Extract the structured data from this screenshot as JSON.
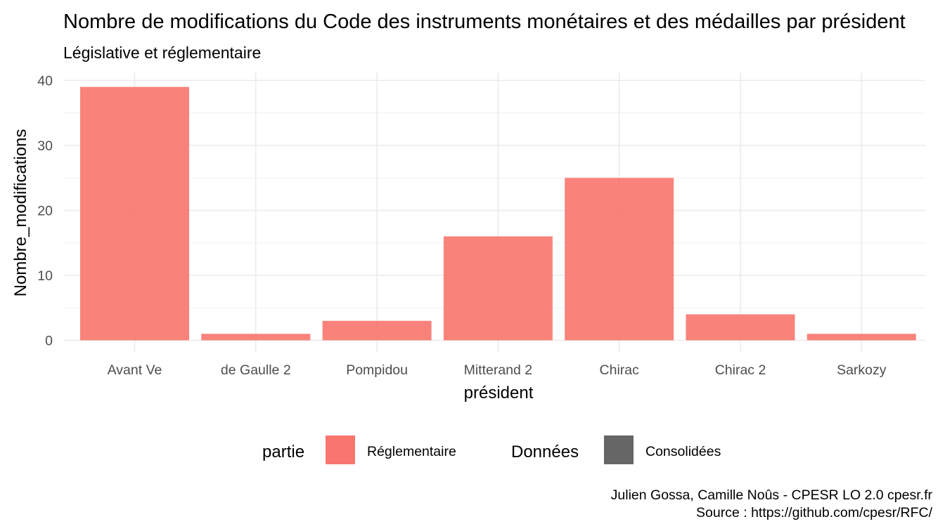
{
  "chart_data": {
    "type": "bar",
    "title": "Nombre de modifications du Code des instruments monétaires et des médailles par président",
    "subtitle": "Législative et réglementaire",
    "xlabel": "président",
    "ylabel": "Nombre_modifications",
    "categories": [
      "Avant Ve",
      "de Gaulle 2",
      "Pompidou",
      "Mitterand 2",
      "Chirac",
      "Chirac 2",
      "Sarkozy"
    ],
    "series": [
      {
        "name": "Réglementaire",
        "color": "#F8766D",
        "values": [
          39,
          1,
          3,
          16,
          25,
          4,
          1
        ]
      }
    ],
    "ylim": [
      0,
      40
    ],
    "yticks": [
      0,
      10,
      20,
      30,
      40
    ],
    "grid": true,
    "legend": {
      "position": "bottom",
      "groups": [
        {
          "title": "partie",
          "items": [
            {
              "label": "Réglementaire",
              "color": "#F8766D"
            }
          ]
        },
        {
          "title": "Données",
          "items": [
            {
              "label": "Consolidées",
              "color": "#666666"
            }
          ]
        }
      ]
    },
    "caption": [
      "Julien Gossa, Camille Noûs - CPESR LO 2.0 cpesr.fr",
      "Source : https://github.com/cpesr/RFC/"
    ]
  }
}
